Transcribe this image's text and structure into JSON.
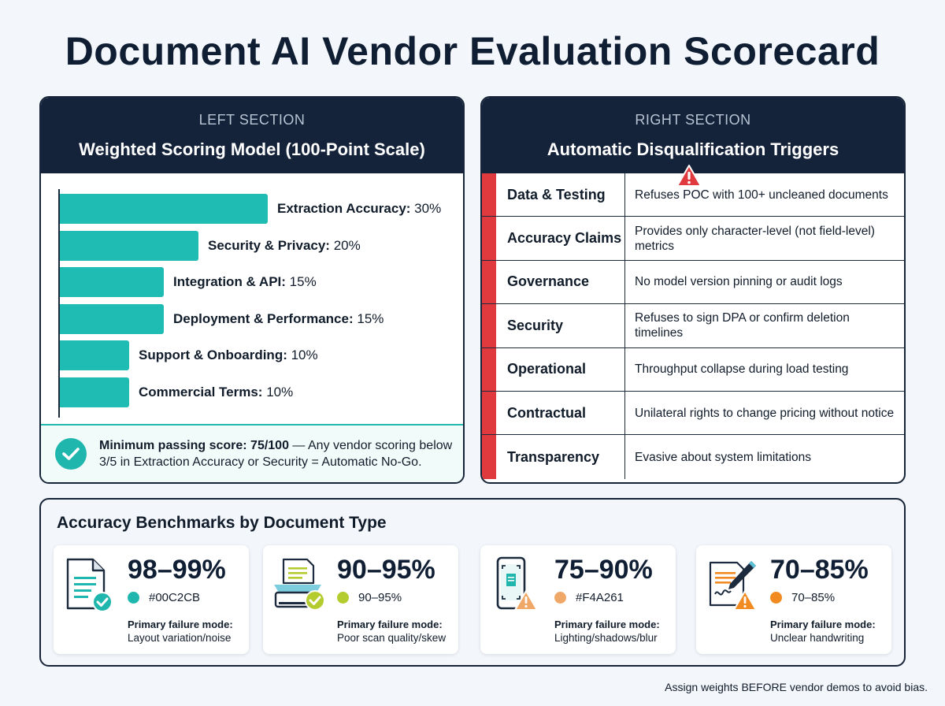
{
  "title": "Document AI Vendor Evaluation Scorecard",
  "left": {
    "section": "LEFT SECTION",
    "heading": "Weighted Scoring Model (100-Point Scale)",
    "criteria": [
      {
        "name": "Extraction Accuracy:",
        "weight": "30%",
        "value": 30
      },
      {
        "name": "Security & Privacy:",
        "weight": "20%",
        "value": 20
      },
      {
        "name": "Integration & API:",
        "weight": "15%",
        "value": 15
      },
      {
        "name": "Deployment & Performance:",
        "weight": "15%",
        "value": 15
      },
      {
        "name": "Support & Onboarding:",
        "weight": "10%",
        "value": 10
      },
      {
        "name": "Commercial Terms:",
        "weight": "10%",
        "value": 10
      }
    ],
    "pass_bold": "Minimum passing score: 75/100",
    "pass_rest": " — Any vendor scoring below 3/5 in Extraction Accuracy or Security = Automatic No-Go.",
    "bar_color": "#1FBCB3"
  },
  "right": {
    "section": "RIGHT SECTION",
    "heading": "Automatic Disqualification Triggers",
    "triggers": [
      {
        "category": "Data & Testing",
        "desc": "Refuses POC with 100+ uncleaned documents"
      },
      {
        "category": "Accuracy Claims",
        "desc": "Provides only character-level (not field-level) metrics"
      },
      {
        "category": "Governance",
        "desc": "No model version pinning or audit logs"
      },
      {
        "category": "Security",
        "desc": "Refuses to sign DPA or confirm deletion timelines"
      },
      {
        "category": "Operational",
        "desc": "Throughput collapse during load testing"
      },
      {
        "category": "Contractual",
        "desc": "Unilateral rights to change pricing without notice"
      },
      {
        "category": "Transparency",
        "desc": "Evasive about system limitations"
      }
    ],
    "stripe_color": "#E03A3E"
  },
  "benchmarks": {
    "title": "Accuracy Benchmarks by Document Type",
    "fm_label": "Primary failure mode:",
    "cards": [
      {
        "range": "98–99%",
        "legend": "#00C2CB",
        "dot": "#1FB7AD",
        "failure": "Layout variation/noise",
        "icon": "digital-document-icon"
      },
      {
        "range": "90–95%",
        "legend": "90–95%",
        "dot": "#B5CC2E",
        "failure": "Poor scan quality/skew",
        "icon": "scanner-icon"
      },
      {
        "range": "75–90%",
        "legend": "#F4A261",
        "dot": "#F0A868",
        "failure": "Lighting/shadows/blur",
        "icon": "phone-capture-icon"
      },
      {
        "range": "70–85%",
        "legend": "70–85%",
        "dot": "#F28A22",
        "failure": "Unclear handwriting",
        "icon": "handwriting-icon"
      }
    ]
  },
  "footnote": "Assign weights BEFORE vendor demos to avoid bias."
}
